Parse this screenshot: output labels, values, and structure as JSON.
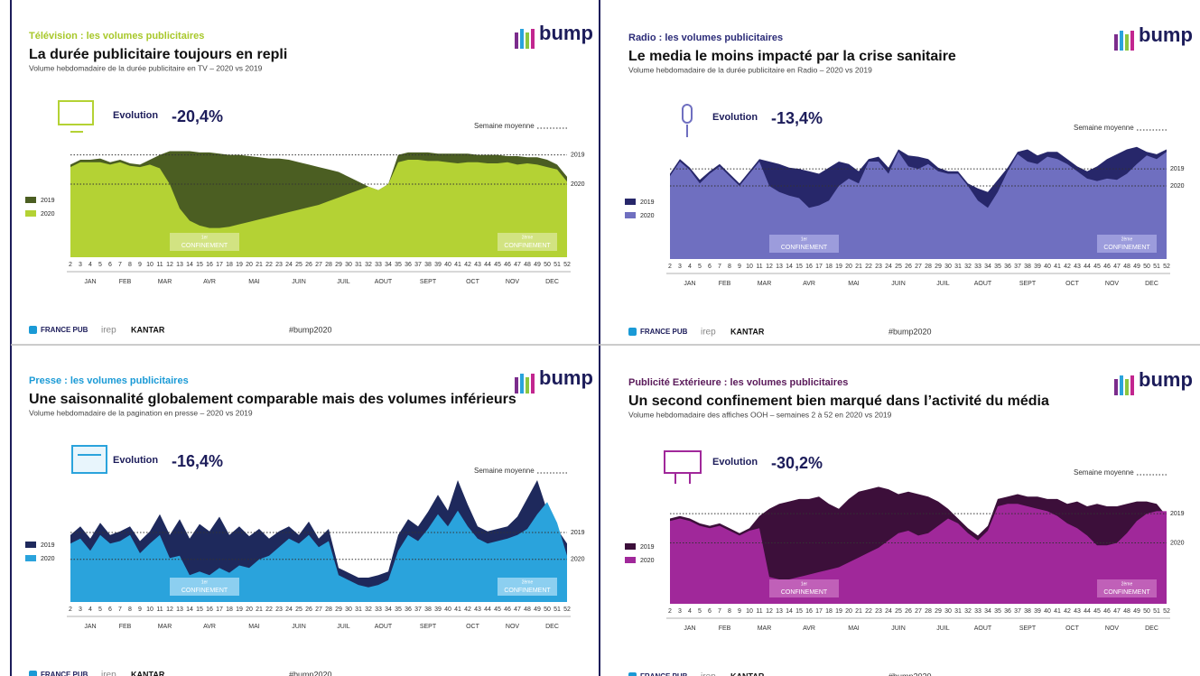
{
  "logo": "bump",
  "footer": {
    "brands": [
      "FRANCE PUB",
      "irep",
      "KANTAR"
    ],
    "hashtag": "#bump2020"
  },
  "axis": {
    "xlim": [
      2,
      52
    ],
    "x": [
      2,
      3,
      4,
      5,
      6,
      7,
      8,
      9,
      10,
      11,
      12,
      13,
      14,
      15,
      16,
      17,
      18,
      19,
      20,
      21,
      22,
      23,
      24,
      25,
      26,
      27,
      28,
      29,
      30,
      31,
      32,
      33,
      34,
      35,
      36,
      37,
      38,
      39,
      40,
      41,
      42,
      43,
      44,
      45,
      46,
      47,
      48,
      49,
      50,
      51,
      52
    ],
    "months": [
      {
        "value": 4,
        "label": "JAN"
      },
      {
        "value": 7.5,
        "label": "FEB"
      },
      {
        "value": 11.5,
        "label": "MAR"
      },
      {
        "value": 16,
        "label": "AVR"
      },
      {
        "value": 20.5,
        "label": "MAI"
      },
      {
        "value": 25,
        "label": "JUIN"
      },
      {
        "value": 29.5,
        "label": "JUIL"
      },
      {
        "value": 33.5,
        "label": "AOUT"
      },
      {
        "value": 38,
        "label": "SEPT"
      },
      {
        "value": 42.5,
        "label": "OCT"
      },
      {
        "value": 46.5,
        "label": "NOV"
      },
      {
        "value": 50.5,
        "label": "DEC"
      }
    ]
  },
  "chart_data": [
    {
      "type": "area",
      "section": "Télévision : les volumes publicitaires",
      "section_color": "#a8c82a",
      "title": "La durée publicitaire toujours en repli",
      "subtitle": "Volume hebdomadaire de la durée publicitaire en TV – 2020 vs 2019",
      "evolution_label": "Evolution",
      "evolution_value": "-20,4%",
      "average_label": "Semaine moyenne",
      "ylim": [
        0,
        100
      ],
      "reference_lines": [
        {
          "label": "2019",
          "value": 84
        },
        {
          "label": "2020",
          "value": 60
        }
      ],
      "annotations": [
        {
          "lines": [
            "1er",
            "CONFINEMENT"
          ],
          "x": [
            12,
            19
          ],
          "color": "#d2e382"
        },
        {
          "lines": [
            "2ème",
            "CONFINEMENT"
          ],
          "x": [
            45,
            51
          ],
          "color": "#d2e382"
        }
      ],
      "series": [
        {
          "name": "2019",
          "color": "#4b5e22",
          "values": [
            76,
            80,
            80,
            81,
            78,
            80,
            77,
            76,
            80,
            84,
            87,
            87,
            87,
            86,
            86,
            85,
            84,
            84,
            83,
            82,
            81,
            81,
            80,
            78,
            76,
            74,
            72,
            70,
            66,
            62,
            58,
            55,
            60,
            84,
            86,
            86,
            86,
            85,
            85,
            85,
            85,
            84,
            84,
            84,
            83,
            83,
            82,
            82,
            80,
            76,
            66
          ]
        },
        {
          "name": "2020",
          "color": "#b4d234",
          "values": [
            74,
            78,
            78,
            78,
            76,
            78,
            75,
            74,
            76,
            73,
            60,
            40,
            30,
            26,
            24,
            24,
            25,
            27,
            29,
            31,
            33,
            35,
            37,
            39,
            41,
            43,
            46,
            49,
            52,
            55,
            58,
            55,
            60,
            78,
            80,
            80,
            79,
            79,
            78,
            77,
            78,
            78,
            77,
            77,
            78,
            76,
            77,
            76,
            74,
            72,
            62
          ]
        }
      ]
    },
    {
      "type": "area",
      "section": "Radio : les volumes publicitaires",
      "section_color": "#2c2c78",
      "title": "Le media le moins impacté par la crise sanitaire",
      "subtitle": "Volume hebdomadaire de la durée publicitaire en Radio – 2020 vs 2019",
      "evolution_label": "Evolution",
      "evolution_value": "-13,4%",
      "average_label": "Semaine moyenne",
      "ylim": [
        0,
        100
      ],
      "reference_lines": [
        {
          "label": "2019",
          "value": 74
        },
        {
          "label": "2020",
          "value": 60
        }
      ],
      "annotations": [
        {
          "lines": [
            "1er",
            "CONFINEMENT"
          ],
          "x": [
            12,
            19
          ],
          "color": "#9c9cdc"
        },
        {
          "lines": [
            "2ème",
            "CONFINEMENT"
          ],
          "x": [
            45,
            51
          ],
          "color": "#9c9cdc"
        }
      ],
      "series": [
        {
          "name": "2019",
          "color": "#27276a",
          "values": [
            70,
            82,
            75,
            65,
            72,
            78,
            70,
            62,
            72,
            82,
            80,
            78,
            75,
            74,
            72,
            70,
            75,
            80,
            78,
            72,
            82,
            84,
            75,
            90,
            85,
            84,
            82,
            75,
            72,
            72,
            62,
            58,
            55,
            65,
            75,
            88,
            90,
            85,
            88,
            88,
            82,
            76,
            72,
            76,
            82,
            86,
            90,
            92,
            88,
            86,
            90
          ]
        },
        {
          "name": "2020",
          "color": "#6f6fc0",
          "values": [
            68,
            80,
            73,
            62,
            70,
            76,
            68,
            60,
            70,
            80,
            60,
            55,
            52,
            50,
            42,
            44,
            48,
            60,
            66,
            62,
            80,
            80,
            70,
            88,
            76,
            74,
            78,
            72,
            70,
            70,
            60,
            48,
            42,
            55,
            72,
            86,
            80,
            78,
            84,
            82,
            78,
            72,
            66,
            64,
            66,
            65,
            70,
            78,
            85,
            82,
            88
          ]
        }
      ]
    },
    {
      "type": "area",
      "section": "Presse : les volumes publicitaires",
      "section_color": "#1a9ad6",
      "title": "Une saisonnalité globalement comparable mais des volumes inférieurs",
      "subtitle": "Volume hebdomadaire de la pagination en presse – 2020 vs 2019",
      "evolution_label": "Evolution",
      "evolution_value": "-16,4%",
      "average_label": "Semaine moyenne",
      "ylim": [
        0,
        100
      ],
      "reference_lines": [
        {
          "label": "2019",
          "value": 57
        },
        {
          "label": "2020",
          "value": 35
        }
      ],
      "annotations": [
        {
          "lines": [
            "1er",
            "CONFINEMENT"
          ],
          "x": [
            12,
            19
          ],
          "color": "#8ccff0"
        },
        {
          "lines": [
            "2ème",
            "CONFINEMENT"
          ],
          "x": [
            45,
            51
          ],
          "color": "#8ccff0"
        }
      ],
      "series": [
        {
          "name": "2019",
          "color": "#1e295c",
          "values": [
            55,
            62,
            52,
            65,
            55,
            58,
            62,
            50,
            58,
            72,
            55,
            68,
            52,
            64,
            58,
            70,
            55,
            62,
            54,
            60,
            52,
            58,
            62,
            55,
            66,
            52,
            60,
            28,
            24,
            20,
            20,
            22,
            25,
            55,
            68,
            62,
            74,
            88,
            75,
            100,
            80,
            62,
            58,
            60,
            62,
            70,
            85,
            100,
            75,
            60,
            48
          ]
        },
        {
          "name": "2020",
          "color": "#2aa3dc",
          "values": [
            48,
            52,
            42,
            55,
            48,
            50,
            55,
            40,
            48,
            55,
            36,
            38,
            22,
            25,
            22,
            28,
            24,
            30,
            28,
            35,
            38,
            45,
            52,
            48,
            55,
            45,
            50,
            22,
            18,
            14,
            12,
            14,
            18,
            42,
            55,
            50,
            60,
            72,
            62,
            75,
            62,
            52,
            48,
            50,
            52,
            55,
            60,
            72,
            82,
            65,
            38
          ]
        }
      ]
    },
    {
      "type": "area",
      "section": "Publicité Extérieure : les volumes publicitaires",
      "section_color": "#5a1a5a",
      "title": "Un second confinement bien marqué dans l’activité du média",
      "subtitle": "Volume hebdomadaire des affiches OOH – semaines 2 à 52 en 2020 vs 2019",
      "evolution_label": "Evolution",
      "evolution_value": "-30,2%",
      "average_label": "Semaine moyenne",
      "ylim": [
        0,
        100
      ],
      "reference_lines": [
        {
          "label": "2019",
          "value": 74
        },
        {
          "label": "2020",
          "value": 50
        }
      ],
      "annotations": [
        {
          "lines": [
            "1er",
            "CONFINEMENT"
          ],
          "x": [
            12,
            19
          ],
          "color": "#c060b8"
        },
        {
          "lines": [
            "2ème",
            "CONFINEMENT"
          ],
          "x": [
            45,
            51
          ],
          "color": "#c060b8"
        }
      ],
      "series": [
        {
          "name": "2019",
          "color": "#3c0f3a",
          "values": [
            70,
            72,
            70,
            66,
            64,
            66,
            62,
            58,
            62,
            72,
            78,
            82,
            84,
            86,
            86,
            88,
            82,
            78,
            86,
            92,
            94,
            96,
            94,
            90,
            92,
            90,
            88,
            84,
            78,
            70,
            62,
            56,
            64,
            86,
            88,
            90,
            88,
            88,
            86,
            86,
            82,
            84,
            80,
            82,
            80,
            80,
            82,
            84,
            84,
            82,
            72
          ]
        },
        {
          "name": "2020",
          "color": "#a0289a",
          "values": [
            68,
            70,
            68,
            64,
            62,
            64,
            60,
            56,
            60,
            62,
            22,
            20,
            20,
            22,
            24,
            26,
            28,
            30,
            34,
            38,
            42,
            46,
            52,
            58,
            60,
            56,
            58,
            64,
            70,
            66,
            58,
            52,
            60,
            80,
            82,
            82,
            80,
            78,
            76,
            72,
            66,
            62,
            56,
            48,
            48,
            50,
            58,
            68,
            74,
            76,
            76
          ]
        }
      ]
    }
  ]
}
